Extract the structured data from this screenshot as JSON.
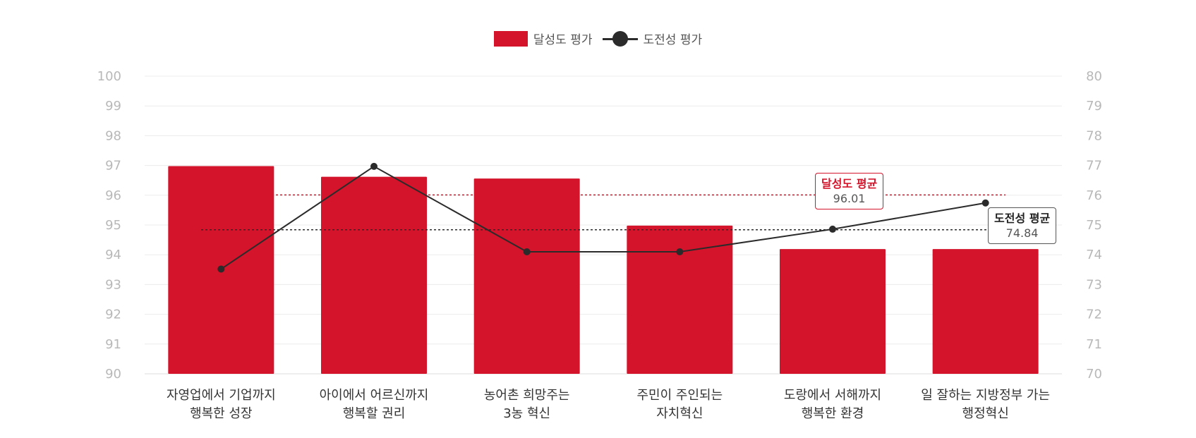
{
  "chart_data": {
    "type": "bar+line",
    "categories": [
      [
        "자영업에서 기업까지",
        "행복한 성장"
      ],
      [
        "아이에서 어르신까지",
        "행복할 권리"
      ],
      [
        "농어촌 희망주는",
        "3농 혁신"
      ],
      [
        "주민이 주인되는",
        "자치혁신"
      ],
      [
        "도랑에서 서해까지",
        "행복한 환경"
      ],
      [
        "일 잘하는 지방정부 가는",
        "행정혁신"
      ]
    ],
    "series": [
      {
        "name": "달성도 평가",
        "type": "bar",
        "axis": "left",
        "color": "#d3142b",
        "values": [
          96.98,
          96.62,
          96.56,
          94.98,
          94.19,
          94.19
        ]
      },
      {
        "name": "도전성 평가",
        "type": "line",
        "axis": "right",
        "color": "#2b2b2b",
        "values": [
          73.52,
          76.97,
          74.1,
          74.1,
          74.86,
          75.74
        ]
      }
    ],
    "y_left": {
      "min": 90,
      "max": 100,
      "ticks": [
        "90",
        "91",
        "92",
        "93",
        "94",
        "95",
        "96",
        "97",
        "98",
        "99",
        "100"
      ]
    },
    "y_right": {
      "min": 70,
      "max": 80,
      "ticks": [
        "70",
        "71",
        "72",
        "73",
        "74",
        "75",
        "76",
        "77",
        "78",
        "79",
        "80"
      ]
    },
    "reference_lines": [
      {
        "label": "달성도 평균",
        "value": 96.01,
        "value_label": "96.01",
        "axis": "left",
        "color": "#d3142b"
      },
      {
        "label": "도전성 평균",
        "value": 74.84,
        "value_label": "74.84",
        "axis": "right",
        "color": "#2b2b2b"
      }
    ],
    "grid": true,
    "legend_position": "top-center"
  }
}
